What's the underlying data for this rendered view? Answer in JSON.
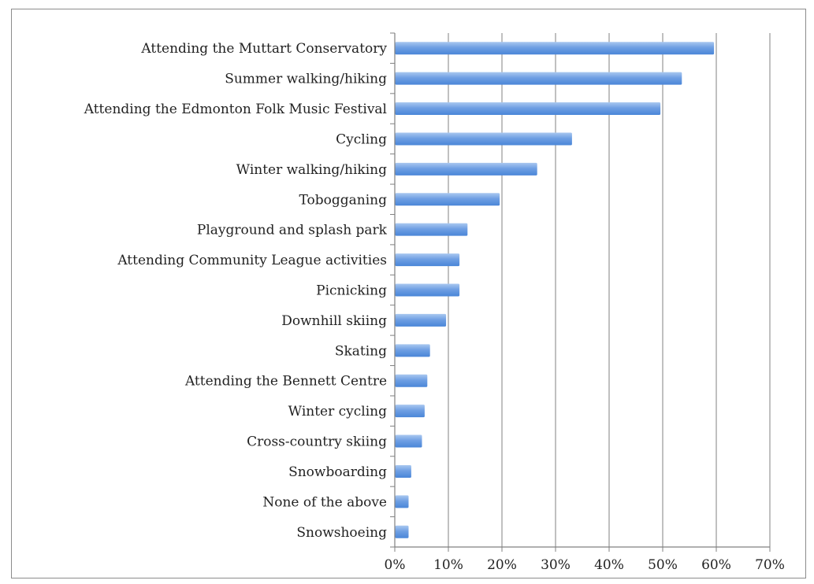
{
  "chart_data": {
    "type": "bar",
    "orientation": "horizontal",
    "categories": [
      "Attending the Muttart Conservatory",
      "Summer walking/hiking",
      "Attending the Edmonton Folk Music Festival",
      "Cycling",
      "Winter walking/hiking",
      "Tobogganing",
      "Playground and splash park",
      "Attending Community League activities",
      "Picnicking",
      "Downhill skiing",
      "Skating",
      "Attending the Bennett Centre",
      "Winter cycling",
      "Cross-country skiing",
      "Snowboarding",
      "None of the above",
      "Snowshoeing"
    ],
    "values": [
      59.5,
      53.5,
      49.5,
      33,
      26.5,
      19.5,
      13.5,
      12,
      12,
      9.5,
      6.5,
      6,
      5.5,
      5,
      3,
      2.5,
      2.5
    ],
    "unit": "%",
    "xlim": [
      0,
      70
    ],
    "xticks": [
      0,
      10,
      20,
      30,
      40,
      50,
      60,
      70
    ],
    "xtick_labels": [
      "0%",
      "10%",
      "20%",
      "30%",
      "40%",
      "50%",
      "60%",
      "70%"
    ],
    "title": "",
    "xlabel": "",
    "ylabel": "",
    "grid": "vertical",
    "legend": "none",
    "colors": {
      "bar_top": "#a9c8f0",
      "bar_bottom": "#4a86d8",
      "grid": "#808080",
      "axis": "#808080"
    }
  }
}
